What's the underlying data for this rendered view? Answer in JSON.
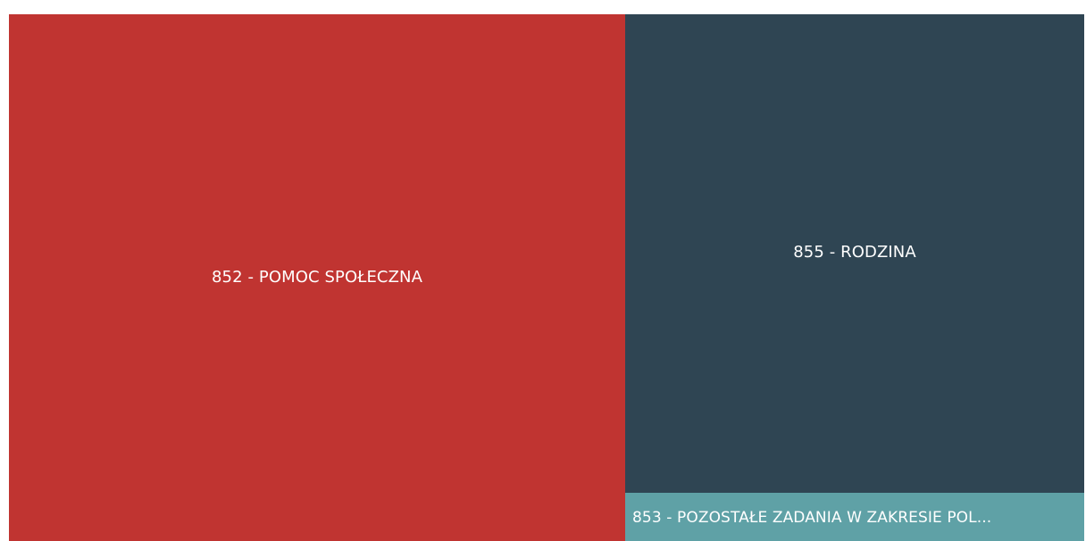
{
  "chart_data": {
    "type": "treemap",
    "items": [
      {
        "label": "852 - POMOC SPOŁECZNA",
        "color": "#c03431"
      },
      {
        "label": "855 - RODZINA",
        "color": "#2f4553"
      },
      {
        "label": "853 - POZOSTAŁE ZADANIA W ZAKRESIE POL...",
        "color": "#5fa1a6"
      }
    ]
  }
}
